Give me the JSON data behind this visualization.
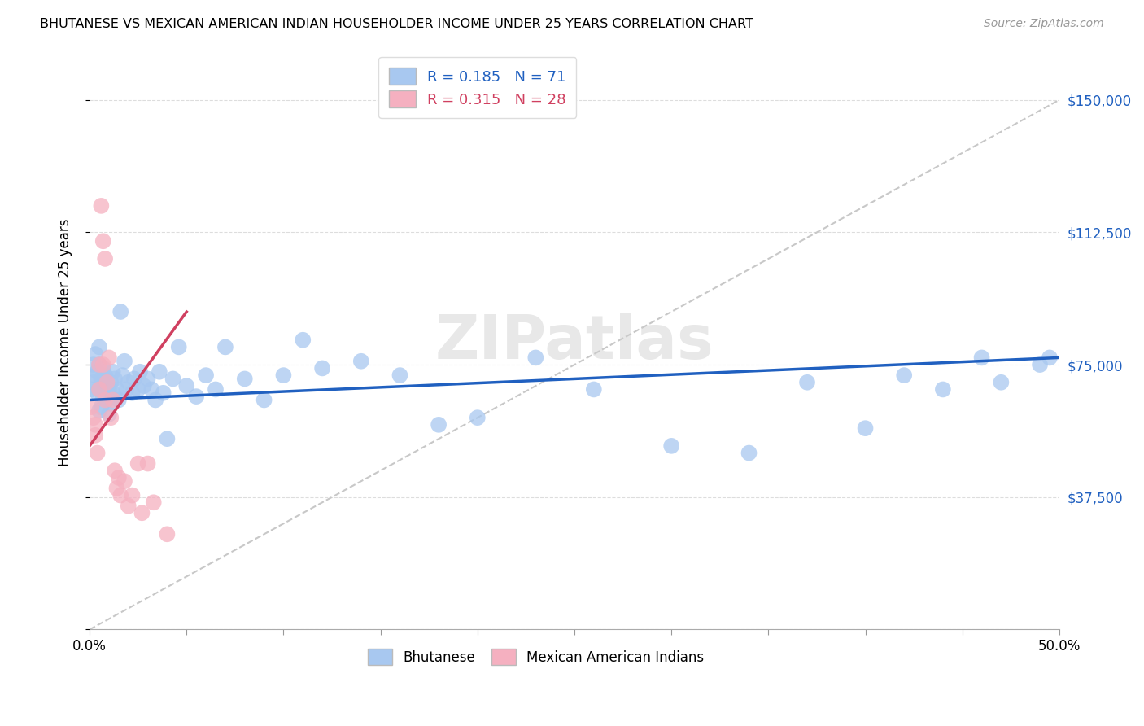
{
  "title": "BHUTANESE VS MEXICAN AMERICAN INDIAN HOUSEHOLDER INCOME UNDER 25 YEARS CORRELATION CHART",
  "source": "Source: ZipAtlas.com",
  "ylabel": "Householder Income Under 25 years",
  "xlim": [
    0,
    0.5
  ],
  "ylim": [
    0,
    162500
  ],
  "xticks": [
    0.0,
    0.05,
    0.1,
    0.15,
    0.2,
    0.25,
    0.3,
    0.35,
    0.4,
    0.45,
    0.5
  ],
  "xticklabels": [
    "0.0%",
    "",
    "",
    "",
    "",
    "",
    "",
    "",
    "",
    "",
    "50.0%"
  ],
  "yticks": [
    0,
    37500,
    75000,
    112500,
    150000
  ],
  "yticklabels": [
    "",
    "$37,500",
    "$75,000",
    "$112,500",
    "$150,000"
  ],
  "blue_R": 0.185,
  "blue_N": 71,
  "pink_R": 0.315,
  "pink_N": 28,
  "blue_color": "#A8C8F0",
  "pink_color": "#F5B0C0",
  "blue_line_color": "#2060C0",
  "pink_line_color": "#D04060",
  "ref_line_color": "#C8C8C8",
  "watermark": "ZIPatlas",
  "blue_scatter_x": [
    0.001,
    0.002,
    0.002,
    0.003,
    0.003,
    0.004,
    0.004,
    0.005,
    0.005,
    0.005,
    0.005,
    0.006,
    0.006,
    0.007,
    0.007,
    0.008,
    0.008,
    0.009,
    0.01,
    0.01,
    0.011,
    0.011,
    0.012,
    0.012,
    0.013,
    0.014,
    0.015,
    0.016,
    0.017,
    0.018,
    0.019,
    0.02,
    0.022,
    0.023,
    0.025,
    0.026,
    0.028,
    0.03,
    0.032,
    0.034,
    0.036,
    0.038,
    0.04,
    0.043,
    0.046,
    0.05,
    0.055,
    0.06,
    0.065,
    0.07,
    0.08,
    0.09,
    0.1,
    0.11,
    0.12,
    0.14,
    0.16,
    0.18,
    0.2,
    0.23,
    0.26,
    0.3,
    0.34,
    0.37,
    0.4,
    0.42,
    0.44,
    0.46,
    0.47,
    0.49,
    0.495
  ],
  "blue_scatter_y": [
    68000,
    75000,
    70000,
    72000,
    78000,
    67000,
    73000,
    62000,
    68000,
    75000,
    80000,
    63000,
    71000,
    66000,
    74000,
    69000,
    72000,
    65000,
    61000,
    68000,
    64000,
    70000,
    73000,
    67000,
    71000,
    68000,
    65000,
    90000,
    72000,
    76000,
    68000,
    70000,
    67000,
    71000,
    68000,
    73000,
    69000,
    71000,
    68000,
    65000,
    73000,
    67000,
    54000,
    71000,
    80000,
    69000,
    66000,
    72000,
    68000,
    80000,
    71000,
    65000,
    72000,
    82000,
    74000,
    76000,
    72000,
    58000,
    60000,
    77000,
    68000,
    52000,
    50000,
    70000,
    57000,
    72000,
    68000,
    77000,
    70000,
    75000,
    77000
  ],
  "pink_scatter_x": [
    0.001,
    0.002,
    0.003,
    0.003,
    0.004,
    0.005,
    0.005,
    0.006,
    0.007,
    0.007,
    0.008,
    0.008,
    0.009,
    0.01,
    0.011,
    0.012,
    0.013,
    0.014,
    0.015,
    0.016,
    0.018,
    0.02,
    0.022,
    0.025,
    0.027,
    0.03,
    0.033,
    0.04
  ],
  "pink_scatter_y": [
    63000,
    60000,
    58000,
    55000,
    50000,
    75000,
    68000,
    120000,
    110000,
    75000,
    105000,
    65000,
    70000,
    77000,
    60000,
    65000,
    45000,
    40000,
    43000,
    38000,
    42000,
    35000,
    38000,
    47000,
    33000,
    47000,
    36000,
    27000
  ],
  "blue_trend_x": [
    0.0,
    0.5
  ],
  "blue_trend_y": [
    65000,
    77000
  ],
  "pink_trend_x": [
    0.0,
    0.05
  ],
  "pink_trend_y": [
    52000,
    90000
  ],
  "ref_line_x": [
    0.0,
    0.5
  ],
  "ref_line_y": [
    0,
    150000
  ]
}
